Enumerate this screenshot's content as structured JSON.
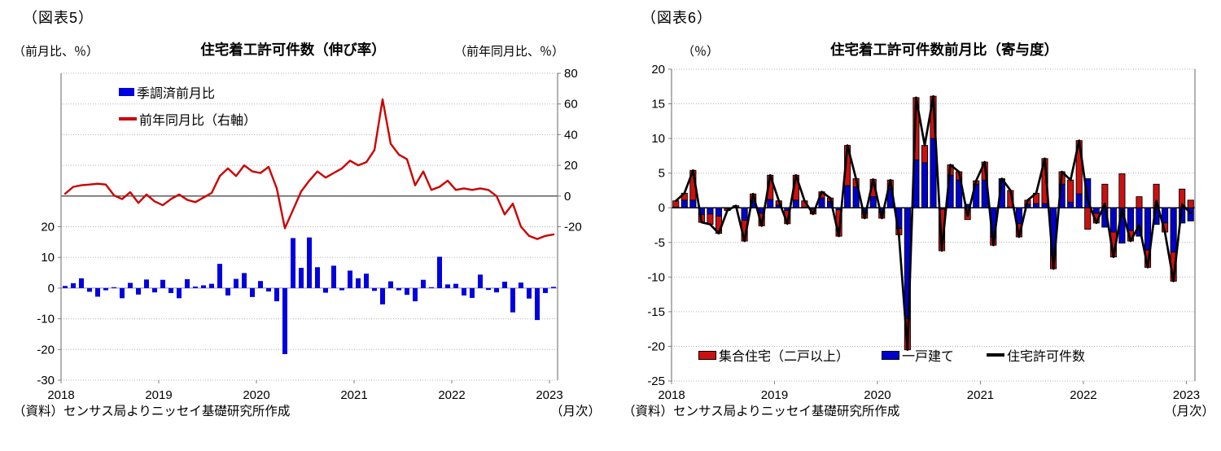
{
  "colors": {
    "bar_blue": "#0000E0",
    "line_red": "#CC0000",
    "contrib_red": "#CC1111",
    "contrib_blue": "#0000CC",
    "total_black": "#000000",
    "grid_gray": "#aaaaaa",
    "axis_gray": "#808080"
  },
  "chart1": {
    "figure_label": "（図表5）",
    "title": "住宅着工許可件数（伸び率）",
    "left_axis_unit": "（前月比、％）",
    "right_axis_unit": "（前年同月比、％）",
    "source": "（資料）センサス局よりニッセイ基礎研究所作成",
    "x_axis_note": "（月次）",
    "legend": [
      {
        "label": "季調済前月比",
        "type": "bar",
        "color": "#0000E0"
      },
      {
        "label": "前年同月比（右軸）",
        "type": "line",
        "color": "#CC0000"
      }
    ]
  },
  "chart2": {
    "figure_label": "（図表6）",
    "title": "住宅着工許可件数前月比（寄与度）",
    "y_axis_unit": "（％）",
    "source": "（資料）センサス局よりニッセイ基礎研究所作成",
    "x_axis_note": "（月次）",
    "legend": [
      {
        "label": "集合住宅（二戸以上）",
        "type": "bar",
        "color": "#CC1111"
      },
      {
        "label": "一戸建て",
        "type": "bar",
        "color": "#0000CC"
      },
      {
        "label": "住宅許可件数",
        "type": "line",
        "color": "#000000"
      }
    ]
  },
  "chart_data": [
    {
      "type": "bar",
      "title": "住宅着工許可件数（伸び率）",
      "x_start_month": "2018-01",
      "x_end_month": "2023-01",
      "x_tick_labels": [
        "2018",
        "2019",
        "2020",
        "2021",
        "2022",
        "2023"
      ],
      "left_axis": {
        "min": -30,
        "max": 70,
        "grid_step": 10,
        "labeled_ticks": [
          20,
          10,
          0,
          -10,
          -20,
          -30
        ]
      },
      "right_axis": {
        "min": -120,
        "max": 80,
        "grid_step": 20,
        "labeled_ticks": [
          80,
          60,
          40,
          20,
          0,
          -20
        ]
      },
      "series": [
        {
          "name": "季調済前月比",
          "axis": "left",
          "kind": "bar",
          "values": [
            0.7,
            1.6,
            3.2,
            -1.2,
            -2.8,
            -0.7,
            0.3,
            -3.3,
            1.7,
            -2.1,
            2.8,
            -1.4,
            2.7,
            -1.6,
            -3.3,
            2.9,
            0.5,
            0.9,
            1.4,
            7.9,
            -2.4,
            3.0,
            4.9,
            -2.9,
            2.3,
            -1.1,
            -4.3,
            -21.5,
            16.3,
            6.6,
            16.5,
            6.8,
            -1.5,
            7.3,
            -0.7,
            5.7,
            3.2,
            4.7,
            -0.9,
            -5.3,
            2.2,
            -0.7,
            -2.2,
            -4.3,
            2.7,
            0.3,
            10.2,
            1.2,
            1.4,
            -2.4,
            -3.2,
            4.4,
            -0.6,
            -1.4,
            2.1,
            -7.9,
            1.8,
            -3.4,
            -10.4,
            -1.6,
            0.4
          ]
        },
        {
          "name": "前年同月比（右軸）",
          "axis": "right",
          "kind": "line",
          "values": [
            1.5,
            6,
            7,
            7.5,
            8,
            7.5,
            0.5,
            -2,
            2.5,
            -4.5,
            1,
            -3.5,
            -6,
            -2,
            1,
            -2.5,
            -4,
            -1,
            2,
            13,
            18,
            13,
            20,
            16,
            15,
            19,
            5,
            -21,
            -9,
            3,
            10,
            16,
            12,
            15,
            18,
            23,
            20,
            22,
            30,
            63,
            34,
            27,
            24,
            7,
            16,
            4,
            6,
            10,
            4,
            5,
            4,
            5,
            4,
            0,
            -12,
            -5,
            -20,
            -26,
            -28,
            -26,
            -25
          ]
        }
      ]
    },
    {
      "type": "bar",
      "title": "住宅着工許可件数前月比（寄与度）",
      "x_start_month": "2018-01",
      "x_end_month": "2023-01",
      "x_tick_labels": [
        "2018",
        "2019",
        "2020",
        "2021",
        "2022",
        "2023"
      ],
      "y_axis": {
        "min": -25,
        "max": 20,
        "grid_step": 5
      },
      "stacked": true,
      "series": [
        {
          "name": "一戸建て",
          "kind": "bar",
          "color": "#0000CC",
          "values": [
            0.1,
            1.1,
            1.1,
            -1.0,
            -0.9,
            -1.2,
            -0.1,
            0.1,
            -1.8,
            0.9,
            -0.8,
            1.2,
            0.4,
            -0.4,
            1.1,
            0.1,
            -0.2,
            1.4,
            0.9,
            -0.3,
            3.2,
            3.0,
            -0.8,
            1.6,
            -0.6,
            2.8,
            -3.0,
            -16.0,
            6.9,
            6.5,
            10.0,
            -0.2,
            4.7,
            4.0,
            0.5,
            3.4,
            4.0,
            -4.2,
            4.1,
            0.1,
            -2.3,
            0.5,
            0.6,
            0.6,
            -6.8,
            3.4,
            0.8,
            2.0,
            4.2,
            -0.8,
            -2.8,
            -3.5,
            -5.1,
            -3.3,
            -4.1,
            -6.1,
            -2.4,
            -2.2,
            -6.4,
            -2.2,
            -1.9
          ]
        },
        {
          "name": "集合住宅（二戸以上）",
          "kind": "bar",
          "color": "#CC1111",
          "values": [
            0.9,
            1.0,
            4.3,
            -1.1,
            -1.5,
            -2.5,
            -0.3,
            0.2,
            -3.0,
            1.1,
            -1.8,
            3.5,
            0.6,
            -1.9,
            3.6,
            0.9,
            -0.7,
            0.9,
            0.5,
            -3.8,
            5.8,
            1.2,
            -0.7,
            2.5,
            -0.9,
            1.2,
            -0.9,
            -4.5,
            9.0,
            2.5,
            6.1,
            -6.0,
            1.5,
            1.2,
            -1.7,
            0.5,
            2.6,
            -1.2,
            0.1,
            2.4,
            -1.9,
            0.6,
            1.5,
            6.5,
            -2.0,
            1.8,
            3.2,
            7.7,
            -3.1,
            -1.4,
            3.4,
            -3.6,
            4.9,
            -1.5,
            1.6,
            -2.5,
            3.4,
            -1.3,
            -4.2,
            2.7,
            1.1
          ]
        },
        {
          "name": "住宅許可件数",
          "kind": "line",
          "color": "#000000",
          "values": [
            1.0,
            2.1,
            5.4,
            -2.1,
            -2.4,
            -3.7,
            -0.4,
            0.3,
            -4.8,
            2.0,
            -2.6,
            4.7,
            1.0,
            -2.3,
            4.7,
            1.0,
            -0.9,
            2.3,
            1.4,
            -4.1,
            9.0,
            4.2,
            -1.5,
            4.1,
            -1.5,
            4.0,
            -3.9,
            -20.5,
            15.9,
            9.0,
            16.1,
            -6.2,
            6.2,
            5.2,
            -1.2,
            3.9,
            6.6,
            -5.4,
            4.2,
            2.5,
            -4.2,
            1.1,
            2.1,
            7.1,
            -8.8,
            5.2,
            4.0,
            9.7,
            1.1,
            -2.2,
            0.6,
            -7.1,
            -0.2,
            -4.8,
            -2.5,
            -8.6,
            1.0,
            -3.5,
            -10.6,
            0.5,
            -0.8
          ]
        }
      ]
    }
  ]
}
